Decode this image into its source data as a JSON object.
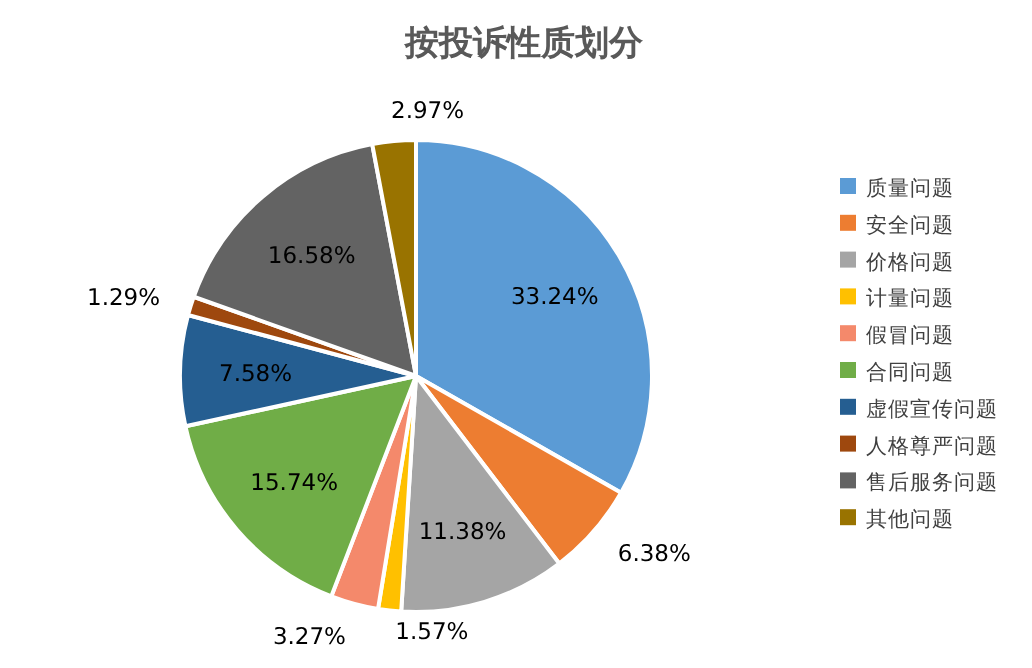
{
  "chart_data": {
    "type": "pie",
    "title": "按投诉性质划分",
    "categories": [
      "质量问题",
      "安全问题",
      "价格问题",
      "计量问题",
      "假冒问题",
      "合同问题",
      "虚假宣传问题",
      "人格尊严问题",
      "售后服务问题",
      "其他问题"
    ],
    "values": [
      33.24,
      6.38,
      11.38,
      1.57,
      3.27,
      15.74,
      7.58,
      1.29,
      16.58,
      2.97
    ],
    "colors": [
      "#5b9bd5",
      "#ed7d31",
      "#a5a5a5",
      "#ffc000",
      "#f4896b",
      "#70ad47",
      "#255e91",
      "#9e480e",
      "#636363",
      "#997300"
    ],
    "value_labels": [
      "33.24%",
      "6.38%",
      "11.38%",
      "1.57%",
      "3.27%",
      "15.74%",
      "7.58%",
      "1.29%",
      "16.58%",
      "2.97%"
    ],
    "legend": "right"
  }
}
